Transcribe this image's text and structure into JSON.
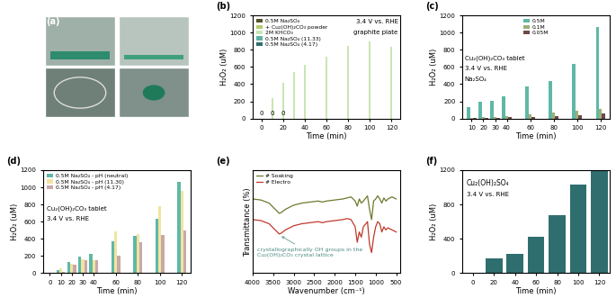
{
  "chart_data": [
    {
      "type": "image",
      "panel": "(a)"
    },
    {
      "type": "bar",
      "panel": "(b)",
      "x_label": "Time (min)",
      "y_label": "H₂O₂ (uM)",
      "x": [
        0,
        10,
        20,
        30,
        40,
        60,
        80,
        100,
        120
      ],
      "series": [
        {
          "name": "0.5M Na₂SO₄",
          "color": "#55552b",
          "values": [
            0,
            0,
            0,
            0,
            0,
            0,
            0,
            0,
            0
          ]
        },
        {
          "name": "+ Cu₂(OH)₂CO₃ powder",
          "color": "#b5cc6a",
          "values": [
            0,
            0,
            0,
            0,
            0,
            0,
            0,
            0,
            0
          ]
        },
        {
          "name": "2M KHCO₃",
          "color": "#c8e6b4",
          "values": [
            0,
            240,
            420,
            540,
            620,
            720,
            840,
            900,
            830
          ]
        },
        {
          "name": "0.5M Na₂SO₄ (11.33)",
          "color": "#5fb3a3",
          "values": [
            0,
            0,
            0,
            0,
            0,
            0,
            0,
            0,
            0
          ]
        },
        {
          "name": "0.5M Na₂SO₄ (4.17)",
          "color": "#2f6e6e",
          "values": [
            0,
            0,
            0,
            0,
            0,
            0,
            0,
            0,
            0
          ]
        }
      ],
      "annotations": [
        {
          "text": "3.4 V vs. RHE",
          "x": 126,
          "y": 1130
        },
        {
          "text": "graphite plate",
          "x": 126,
          "y": 1000
        },
        {
          "text": "0",
          "x": 0,
          "y": 25
        },
        {
          "text": "0",
          "x": 10,
          "y": 25
        },
        {
          "text": "0",
          "x": 20,
          "y": 25
        }
      ],
      "legend": "upper left",
      "xlim": [
        -8,
        128
      ],
      "xticks": [
        0,
        20,
        40,
        60,
        80,
        100,
        120
      ],
      "ylim": [
        0,
        1200
      ],
      "yticks": [
        0,
        200,
        400,
        600,
        800,
        1000,
        1200
      ]
    },
    {
      "type": "bar",
      "panel": "(c)",
      "x_label": "Time (min)",
      "y_label": "H₂O₂ (uM)",
      "x": [
        10,
        20,
        30,
        40,
        60,
        80,
        100,
        120
      ],
      "series": [
        {
          "name": "0.5M",
          "color": "#5fb8a6",
          "values": [
            130,
            190,
            210,
            260,
            375,
            435,
            630,
            1060
          ]
        },
        {
          "name": "0.1M",
          "color": "#9fae7a",
          "values": [
            10,
            15,
            20,
            25,
            50,
            70,
            95,
            110
          ]
        },
        {
          "name": "0.05M",
          "color": "#6b4848",
          "values": [
            5,
            8,
            10,
            15,
            20,
            30,
            40,
            60
          ]
        }
      ],
      "annotations": [
        {
          "text": "Cu₂(OH)₂CO₃ tablet",
          "x": 4,
          "y": 700
        },
        {
          "text": "3.4 V vs. RHE",
          "x": 4,
          "y": 580
        },
        {
          "text": "Na₂SO₄",
          "x": 4,
          "y": 460
        }
      ],
      "legend": "upper center",
      "xlim": [
        2,
        128
      ],
      "xticks": [
        10,
        20,
        30,
        40,
        60,
        80,
        100,
        120
      ],
      "ylim": [
        0,
        1200
      ],
      "yticks": [
        0,
        200,
        400,
        600,
        800,
        1000,
        1200
      ]
    },
    {
      "type": "bar",
      "panel": "(d)",
      "x_label": "Time (min)",
      "y_label": "H₂O₂ (uM)",
      "x": [
        0,
        10,
        20,
        30,
        40,
        60,
        80,
        100,
        120
      ],
      "series": [
        {
          "name": "0.5M Na₂SO₄ - pH (neutral)",
          "color": "#5fb8a6",
          "values": [
            0,
            40,
            130,
            190,
            225,
            375,
            435,
            630,
            1060
          ]
        },
        {
          "name": "0.5M Na₂SO₄ - pH (11.30)",
          "color": "#f0e4a0",
          "values": [
            0,
            60,
            110,
            165,
            150,
            490,
            460,
            780,
            960
          ]
        },
        {
          "name": "0.5M Na₂SO₄ - pH (4.17)",
          "color": "#c9a8a8",
          "values": [
            0,
            20,
            100,
            150,
            150,
            205,
            360,
            450,
            500
          ]
        }
      ],
      "annotations": [
        {
          "text": "Cu₂(OH)₂CO₃ tablet",
          "x": -3,
          "y": 750
        },
        {
          "text": "3.4 V vs. RHE",
          "x": -3,
          "y": 630
        }
      ],
      "legend": "upper left",
      "xlim": [
        -6,
        128
      ],
      "xticks": [
        0,
        10,
        20,
        30,
        40,
        60,
        80,
        100,
        120
      ],
      "ylim": [
        0,
        1200
      ],
      "yticks": [
        0,
        200,
        400,
        600,
        800,
        1000,
        1200
      ]
    },
    {
      "type": "line",
      "panel": "(e)",
      "x_label": "Wavenumber (cm⁻¹)",
      "y_label": "Transmittance (%)",
      "x": [
        4000,
        3800,
        3600,
        3500,
        3400,
        3350,
        3300,
        3200,
        3000,
        2800,
        2600,
        2400,
        2300,
        2200,
        2000,
        1800,
        1700,
        1600,
        1500,
        1450,
        1400,
        1350,
        1300,
        1200,
        1150,
        1100,
        1050,
        1000,
        950,
        900,
        850,
        800,
        750,
        700,
        600,
        500
      ],
      "series": [
        {
          "name": "# Soaking",
          "color": "#6b7a2e",
          "values": [
            82,
            81,
            78,
            74,
            70,
            68,
            69,
            72,
            76,
            78,
            79,
            80,
            79,
            80,
            81,
            82,
            83,
            84,
            80,
            75,
            82,
            78,
            80,
            85,
            72,
            62,
            80,
            82,
            85,
            82,
            78,
            83,
            80,
            82,
            84,
            82
          ]
        },
        {
          "name": "# Electro",
          "color": "#c0392b",
          "values": [
            62,
            61,
            58,
            54,
            50,
            48,
            49,
            52,
            56,
            58,
            59,
            60,
            59,
            60,
            61,
            62,
            63,
            62,
            55,
            40,
            50,
            45,
            55,
            60,
            38,
            30,
            45,
            55,
            60,
            58,
            50,
            55,
            52,
            54,
            52,
            50
          ]
        }
      ],
      "annotations": [
        {
          "text": "crystallographically OH groups in the\nCu₂(OH)₂CO₃ crystal lattice",
          "x": 3900,
          "y": 30
        }
      ],
      "legend": "upper left",
      "tick_labels": "x",
      "xlim": [
        4000,
        400
      ],
      "xticks": [
        4000,
        3500,
        3000,
        2500,
        2000,
        1500,
        1000,
        500
      ],
      "ylim": [
        10,
        110
      ]
    },
    {
      "type": "bar",
      "panel": "(f)",
      "x_label": "Time (min)",
      "y_label": "H₂O₂ (uM)",
      "x": [
        0,
        20,
        40,
        60,
        80,
        100,
        120
      ],
      "series": [
        {
          "name": "Cu₂(OH)₂SO₄",
          "color": "#2f6e6e",
          "values": [
            0,
            170,
            220,
            420,
            680,
            1030,
            1190
          ]
        }
      ],
      "annotations": [
        {
          "text": "3.4 V vs. RHE",
          "x": -6,
          "y": 920
        }
      ],
      "xlim": [
        -10,
        130
      ],
      "xticks": [
        0,
        20,
        40,
        60,
        80,
        100,
        120
      ],
      "ylim": [
        0,
        1200
      ],
      "yticks": [
        0,
        400,
        800,
        1200
      ]
    }
  ]
}
